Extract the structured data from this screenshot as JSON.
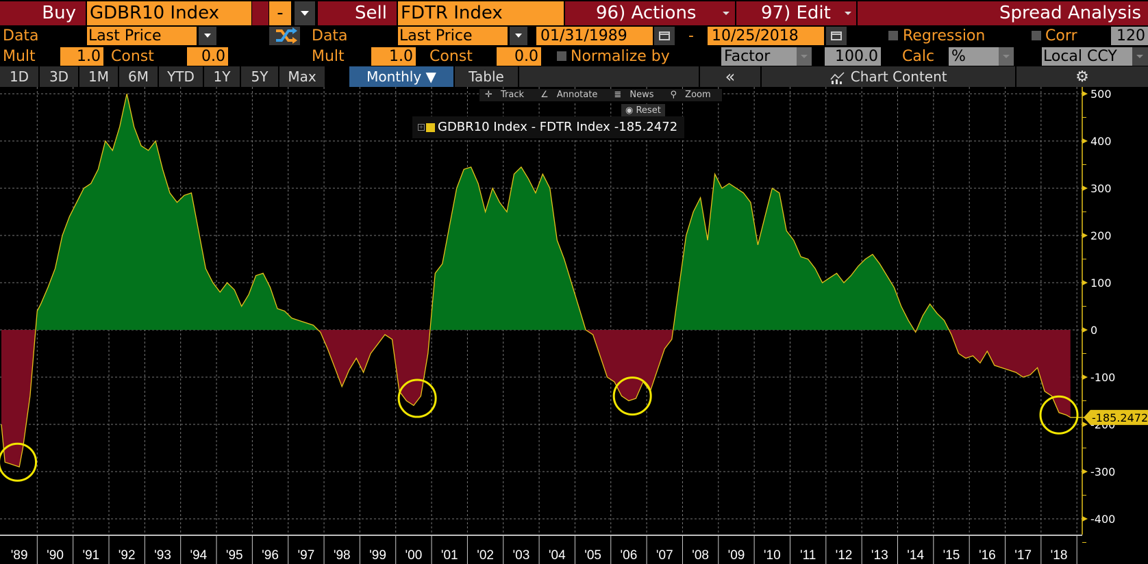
{
  "header": {
    "buy_label": "Buy",
    "buy_ticker": "GDBR10 Index",
    "operator": "-",
    "sell_label": "Sell",
    "sell_ticker": "FDTR Index",
    "actions_menu": "96) Actions",
    "edit_menu": "97) Edit",
    "title": "Spread Analysis"
  },
  "buy_params": {
    "data_label": "Data",
    "data_value": "Last Price",
    "mult_label": "Mult",
    "mult_value": "1.0",
    "const_label": "Const",
    "const_value": "0.0"
  },
  "sell_params": {
    "data_label": "Data",
    "data_value": "Last Price",
    "mult_label": "Mult",
    "mult_value": "1.0",
    "const_label": "Const",
    "const_value": "0.0"
  },
  "date_range": {
    "start": "01/31/1989",
    "separator": "-",
    "end": "10/25/2018"
  },
  "options": {
    "regression_label": "Regression",
    "corr_label": "Corr",
    "corr_value": "120",
    "normalize_label": "Normalize by",
    "normalize_value": "Factor",
    "factor_value": "100.0",
    "calc_label": "Calc",
    "calc_value": "%",
    "currency_value": "Local CCY"
  },
  "tabs": [
    {
      "label": "1D"
    },
    {
      "label": "3D"
    },
    {
      "label": "1M"
    },
    {
      "label": "6M"
    },
    {
      "label": "YTD"
    },
    {
      "label": "1Y"
    },
    {
      "label": "5Y"
    },
    {
      "label": "Max"
    },
    {
      "label": "Monthly ▼",
      "active": true
    },
    {
      "label": "Table"
    }
  ],
  "chart_toolbar": {
    "collapse": "«",
    "chart_content": "Chart Content",
    "track": "Track",
    "annotate": "Annotate",
    "news": "News",
    "zoom": "Zoom",
    "reset": "Reset"
  },
  "legend": {
    "series": "GDBR10 Index - FDTR Index",
    "last_value": "-185.2472"
  },
  "colors": {
    "positive_fill": "#03731c",
    "negative_fill": "#7a0c22",
    "line": "#e6c31a",
    "highlight_circle": "#f2e600",
    "accent_orange": "#fa9c2a",
    "header_maroon": "#8b0f1e"
  },
  "chart_data": {
    "type": "area",
    "title": "GDBR10 Index - FDTR Index",
    "xlabel": "",
    "ylabel": "",
    "ylim": [
      -400,
      500
    ],
    "yticks": [
      500,
      400,
      300,
      200,
      100,
      0,
      -100,
      -200,
      -300,
      -400
    ],
    "xticks": [
      "'89",
      "'90",
      "'91",
      "'92",
      "'93",
      "'94",
      "'95",
      "'96",
      "'97",
      "'98",
      "'99",
      "'00",
      "'01",
      "'02",
      "'03",
      "'04",
      "'05",
      "'06",
      "'07",
      "'08",
      "'09",
      "'10",
      "'11",
      "'12",
      "'13",
      "'14",
      "'15",
      "'16",
      "'17",
      "'18"
    ],
    "grid": true,
    "last_value": -185.2472,
    "annotations": [
      "circle ~1989 trough (~-285)",
      "circle ~2000 trough (~-160)",
      "circle ~2006 trough (~-150)",
      "circle 2018 (~-185)"
    ],
    "x": [
      1989.0,
      1989.1,
      1989.3,
      1989.5,
      1989.6,
      1989.8,
      1990.0,
      1990.1,
      1990.3,
      1990.5,
      1990.7,
      1990.9,
      1991.1,
      1991.3,
      1991.5,
      1991.7,
      1991.9,
      1992.1,
      1992.3,
      1992.5,
      1992.7,
      1992.9,
      1993.1,
      1993.3,
      1993.5,
      1993.7,
      1993.9,
      1994.1,
      1994.3,
      1994.5,
      1994.7,
      1994.9,
      1995.1,
      1995.3,
      1995.5,
      1995.7,
      1995.9,
      1996.1,
      1996.3,
      1996.5,
      1996.7,
      1996.9,
      1997.1,
      1997.3,
      1997.5,
      1997.7,
      1997.9,
      1998.1,
      1998.3,
      1998.5,
      1998.7,
      1998.9,
      1999.1,
      1999.3,
      1999.5,
      1999.7,
      1999.9,
      2000.1,
      2000.3,
      2000.5,
      2000.7,
      2000.9,
      2001.1,
      2001.3,
      2001.5,
      2001.7,
      2001.9,
      2002.1,
      2002.3,
      2002.5,
      2002.7,
      2002.9,
      2003.1,
      2003.3,
      2003.5,
      2003.7,
      2003.9,
      2004.1,
      2004.3,
      2004.5,
      2004.7,
      2004.9,
      2005.1,
      2005.3,
      2005.5,
      2005.7,
      2005.9,
      2006.1,
      2006.3,
      2006.5,
      2006.7,
      2006.9,
      2007.1,
      2007.3,
      2007.5,
      2007.7,
      2007.9,
      2008.1,
      2008.3,
      2008.5,
      2008.7,
      2008.9,
      2009.1,
      2009.3,
      2009.5,
      2009.7,
      2009.9,
      2010.1,
      2010.3,
      2010.5,
      2010.7,
      2010.9,
      2011.1,
      2011.3,
      2011.5,
      2011.7,
      2011.9,
      2012.1,
      2012.3,
      2012.5,
      2012.7,
      2012.9,
      2013.1,
      2013.3,
      2013.5,
      2013.7,
      2013.9,
      2014.1,
      2014.3,
      2014.5,
      2014.7,
      2014.9,
      2015.1,
      2015.3,
      2015.5,
      2015.7,
      2015.9,
      2016.1,
      2016.3,
      2016.5,
      2016.7,
      2016.9,
      2017.1,
      2017.3,
      2017.5,
      2017.7,
      2017.9,
      2018.1,
      2018.3,
      2018.5,
      2018.7,
      2018.82
    ],
    "values": [
      -200,
      -280,
      -285,
      -290,
      -250,
      -140,
      40,
      55,
      90,
      130,
      200,
      240,
      270,
      300,
      310,
      340,
      400,
      380,
      430,
      500,
      430,
      390,
      380,
      400,
      340,
      290,
      270,
      285,
      290,
      210,
      130,
      100,
      80,
      100,
      85,
      50,
      75,
      115,
      120,
      90,
      45,
      40,
      25,
      20,
      15,
      10,
      -5,
      -40,
      -80,
      -120,
      -85,
      -60,
      -90,
      -50,
      -30,
      -10,
      -20,
      -130,
      -150,
      -160,
      -140,
      -50,
      120,
      140,
      220,
      300,
      340,
      345,
      310,
      250,
      300,
      270,
      250,
      330,
      345,
      320,
      290,
      330,
      300,
      190,
      150,
      100,
      50,
      0,
      -10,
      -55,
      -100,
      -110,
      -140,
      -150,
      -145,
      -110,
      -130,
      -85,
      -40,
      -20,
      90,
      200,
      250,
      280,
      190,
      330,
      300,
      310,
      300,
      290,
      270,
      180,
      240,
      300,
      290,
      210,
      190,
      155,
      150,
      130,
      100,
      110,
      120,
      100,
      115,
      135,
      150,
      160,
      140,
      115,
      90,
      50,
      20,
      -5,
      30,
      55,
      35,
      20,
      -10,
      -50,
      -60,
      -55,
      -70,
      -45,
      -75,
      -80,
      -85,
      -90,
      -100,
      -95,
      -80,
      -130,
      -140,
      -175,
      -180,
      -185.25
    ]
  }
}
